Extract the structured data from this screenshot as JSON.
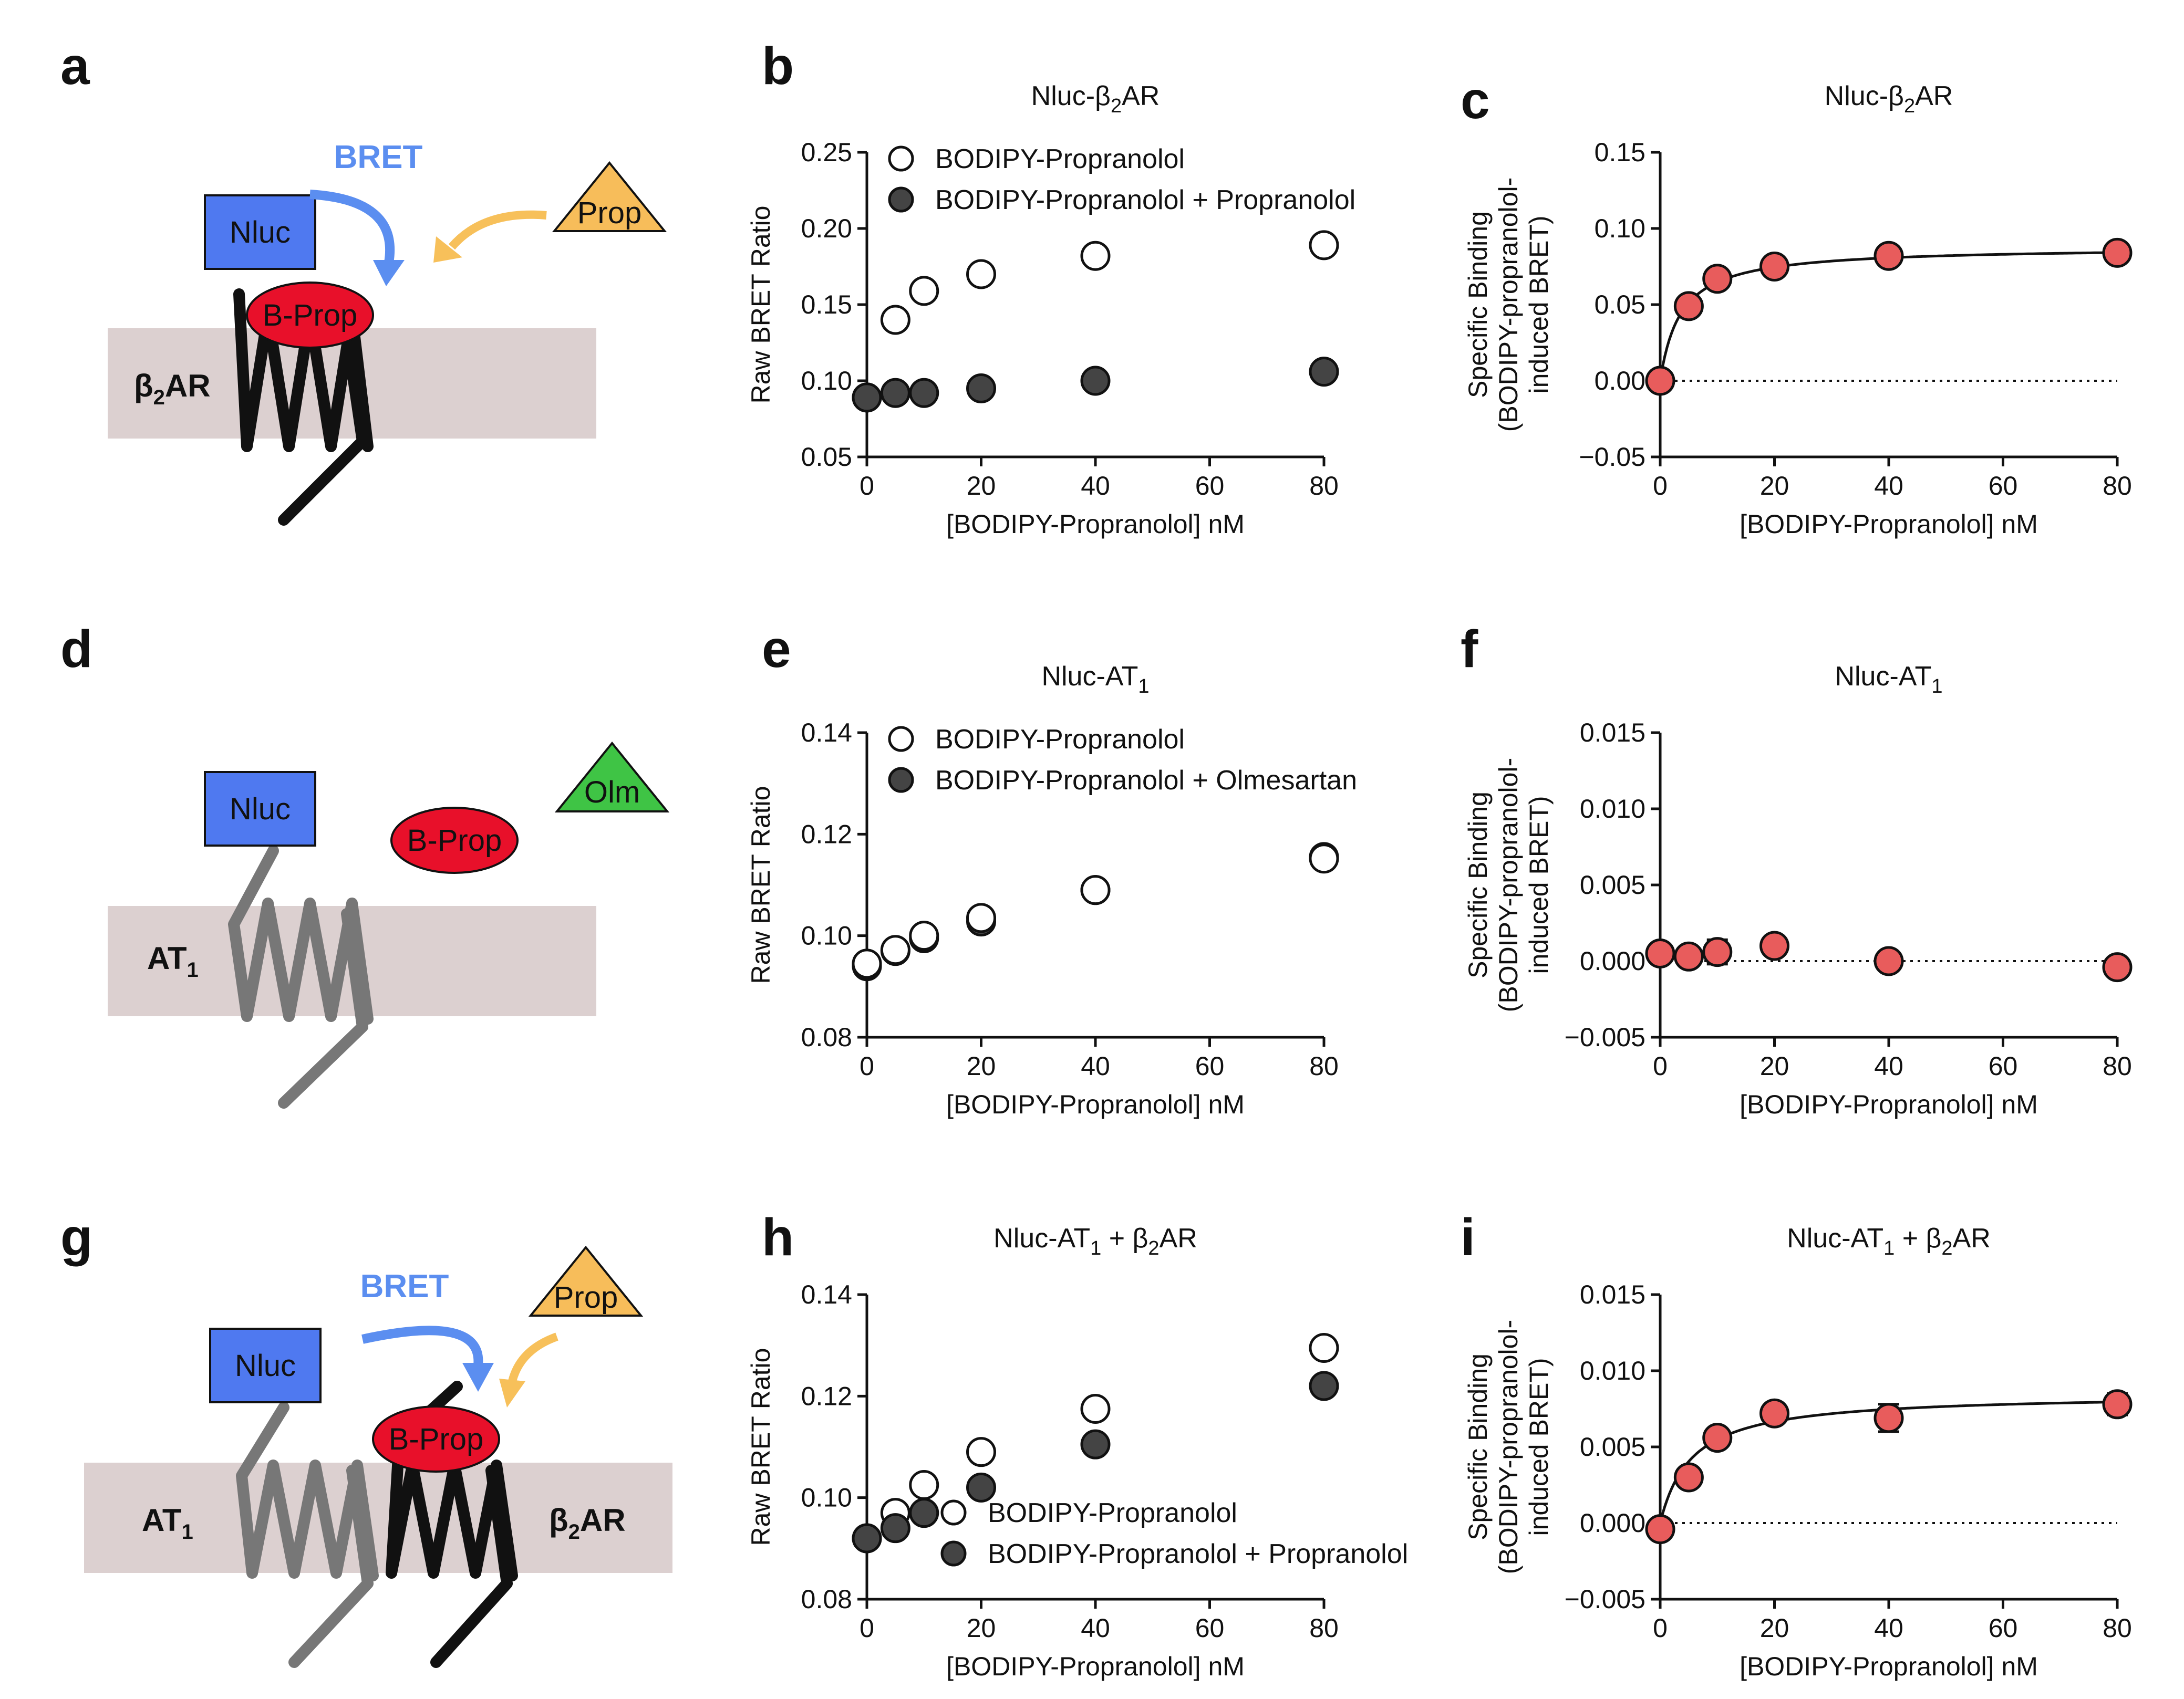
{
  "panel_labels": [
    "a",
    "b",
    "c",
    "d",
    "e",
    "f",
    "g",
    "h",
    "i"
  ],
  "diagram_a": {
    "nluc": "Nluc",
    "ligand": "B-Prop",
    "competitor": "Prop",
    "bret": "BRET",
    "receptor": "β",
    "receptor_sub": "2",
    "receptor_tail": "AR"
  },
  "diagram_d": {
    "nluc": "Nluc",
    "ligand": "B-Prop",
    "competitor": "Olm",
    "receptor": "AT",
    "receptor_sub": "1"
  },
  "diagram_g": {
    "nluc": "Nluc",
    "ligand": "B-Prop",
    "competitor": "Prop",
    "bret": "BRET",
    "receptor1": "AT",
    "receptor1_sub": "1",
    "receptor2": "β",
    "receptor2_sub": "2",
    "receptor2_tail": "AR"
  },
  "colors": {
    "membrane": "#dcd0d0",
    "nluc": "#4f79f0",
    "ligand": "#e8102a",
    "prop": "#f7bd5a",
    "olm": "#3fc445",
    "bret_arrow": "#5b8ef0",
    "prop_arrow": "#f7c05a",
    "red_point": "#e85c5c",
    "filled_point": "#444444"
  },
  "chart_data": [
    {
      "panel": "b",
      "type": "scatter",
      "title_parts": [
        "Nluc-β",
        "2",
        "AR"
      ],
      "xlabel": "[BODIPY-Propranolol] nM",
      "ylabel": "Raw BRET Ratio",
      "xlim": [
        0,
        80
      ],
      "ylim": [
        0.05,
        0.25
      ],
      "xticks": [
        0,
        20,
        40,
        60,
        80
      ],
      "xtick_labels": [
        "0",
        "20",
        "40",
        "60",
        "80"
      ],
      "yticks": [
        0.05,
        0.1,
        0.15,
        0.2,
        0.25
      ],
      "ytick_labels": [
        "0.05",
        "0.10",
        "0.15",
        "0.20",
        "0.25"
      ],
      "legend": "top-left",
      "series": [
        {
          "name": "BODIPY-Propranolol",
          "style": "open",
          "x": [
            0,
            5,
            10,
            20,
            40,
            80
          ],
          "y": [
            0.089,
            0.14,
            0.159,
            0.17,
            0.182,
            0.189
          ],
          "err": [
            0,
            0,
            0,
            0,
            0,
            0
          ]
        },
        {
          "name": "BODIPY-Propranolol + Propranolol",
          "style": "filled",
          "x": [
            0,
            5,
            10,
            20,
            40,
            80
          ],
          "y": [
            0.089,
            0.092,
            0.092,
            0.095,
            0.1,
            0.106
          ],
          "err": [
            0,
            0,
            0,
            0,
            0,
            0
          ]
        }
      ]
    },
    {
      "panel": "c",
      "type": "scatter",
      "title_parts": [
        "Nluc-β",
        "2",
        "AR"
      ],
      "xlabel": "[BODIPY-Propranolol] nM",
      "ylabel_lines": [
        "Specific Binding",
        "(BODIPY-propranolol-",
        "induced BRET)"
      ],
      "xlim": [
        0,
        80
      ],
      "ylim": [
        -0.05,
        0.15
      ],
      "xticks": [
        0,
        20,
        40,
        60,
        80
      ],
      "xtick_labels": [
        "0",
        "20",
        "40",
        "60",
        "80"
      ],
      "yticks": [
        -0.05,
        0.0,
        0.05,
        0.1,
        0.15
      ],
      "ytick_labels": [
        "−0.05",
        "0.00",
        "0.05",
        "0.10",
        "0.15"
      ],
      "zero_line": true,
      "fit": {
        "model": "one-site",
        "bmax": 0.088,
        "kd": 3.6
      },
      "series": [
        {
          "name": "Specific",
          "style": "red",
          "x": [
            0,
            5,
            10,
            20,
            40,
            80
          ],
          "y": [
            0.0,
            0.049,
            0.067,
            0.075,
            0.082,
            0.084
          ],
          "err": [
            0,
            0,
            0,
            0,
            0,
            0
          ]
        }
      ]
    },
    {
      "panel": "e",
      "type": "scatter",
      "title_parts": [
        "Nluc-AT",
        "1",
        ""
      ],
      "xlabel": "[BODIPY-Propranolol] nM",
      "ylabel": "Raw BRET Ratio",
      "xlim": [
        0,
        80
      ],
      "ylim": [
        0.08,
        0.14
      ],
      "xticks": [
        0,
        20,
        40,
        60,
        80
      ],
      "xtick_labels": [
        "0",
        "20",
        "40",
        "60",
        "80"
      ],
      "yticks": [
        0.08,
        0.1,
        0.12,
        0.14
      ],
      "ytick_labels": [
        "0.08",
        "0.10",
        "0.12",
        "0.14"
      ],
      "legend": "top-left",
      "series": [
        {
          "name": "BODIPY-Propranolol + Olmesartan",
          "style": "filled",
          "x": [
            0,
            5,
            10,
            20,
            40,
            80
          ],
          "y": [
            0.094,
            0.097,
            0.0995,
            0.1028,
            0.109,
            0.1155
          ],
          "err": [
            0.001,
            0,
            0,
            0,
            0,
            0
          ]
        },
        {
          "name": "BODIPY-Propranolol",
          "style": "open",
          "x": [
            0,
            5,
            10,
            20,
            40,
            80
          ],
          "y": [
            0.0945,
            0.0972,
            0.1,
            0.1035,
            0.109,
            0.1152
          ],
          "err": [
            0.001,
            0,
            0,
            0,
            0,
            0
          ]
        }
      ]
    },
    {
      "panel": "f",
      "type": "scatter",
      "title_parts": [
        "Nluc-AT",
        "1",
        ""
      ],
      "xlabel": "[BODIPY-Propranolol] nM",
      "ylabel_lines": [
        "Specific Binding",
        "(BODIPY-propranolol-",
        "induced BRET)"
      ],
      "xlim": [
        0,
        80
      ],
      "ylim": [
        -0.005,
        0.015
      ],
      "xticks": [
        0,
        20,
        40,
        60,
        80
      ],
      "xtick_labels": [
        "0",
        "20",
        "40",
        "60",
        "80"
      ],
      "yticks": [
        -0.005,
        0.0,
        0.005,
        0.01,
        0.015
      ],
      "ytick_labels": [
        "−0.005",
        "0.000",
        "0.005",
        "0.010",
        "0.015"
      ],
      "zero_line": true,
      "series": [
        {
          "name": "Specific",
          "style": "red",
          "x": [
            0,
            5,
            10,
            20,
            40,
            80
          ],
          "y": [
            0.0005,
            0.0003,
            0.0006,
            0.001,
            0.0,
            -0.0004
          ],
          "err": [
            0,
            0,
            0.0008,
            0.0005,
            0.0006,
            0
          ]
        }
      ]
    },
    {
      "panel": "h",
      "type": "scatter",
      "title_parts": [
        "Nluc-AT",
        "1",
        " + β",
        "2",
        "AR"
      ],
      "xlabel": "[BODIPY-Propranolol] nM",
      "ylabel": "Raw BRET Ratio",
      "xlim": [
        0,
        80
      ],
      "ylim": [
        0.08,
        0.14
      ],
      "xticks": [
        0,
        20,
        40,
        60,
        80
      ],
      "xtick_labels": [
        "0",
        "20",
        "40",
        "60",
        "80"
      ],
      "yticks": [
        0.08,
        0.1,
        0.12,
        0.14
      ],
      "ytick_labels": [
        "0.08",
        "0.10",
        "0.12",
        "0.14"
      ],
      "legend": "bottom-right",
      "series": [
        {
          "name": "BODIPY-Propranolol",
          "style": "open",
          "x": [
            0,
            5,
            10,
            20,
            40,
            80
          ],
          "y": [
            0.092,
            0.097,
            0.1025,
            0.109,
            0.1175,
            0.1295
          ],
          "err": [
            0,
            0,
            0,
            0.001,
            0.001,
            0.0012
          ]
        },
        {
          "name": "BODIPY-Propranolol + Propranolol",
          "style": "filled",
          "x": [
            0,
            5,
            10,
            20,
            40,
            80
          ],
          "y": [
            0.092,
            0.094,
            0.097,
            0.102,
            0.1105,
            0.122
          ],
          "err": [
            0,
            0,
            0,
            0,
            0,
            0.0012
          ]
        }
      ]
    },
    {
      "panel": "i",
      "type": "scatter",
      "title_parts": [
        "Nluc-AT",
        "1",
        " + β",
        "2",
        "AR"
      ],
      "xlabel": "[BODIPY-Propranolol] nM",
      "ylabel_lines": [
        "Specific Binding",
        "(BODIPY-propranolol-",
        "induced BRET)"
      ],
      "xlim": [
        0,
        80
      ],
      "ylim": [
        -0.005,
        0.015
      ],
      "xticks": [
        0,
        20,
        40,
        60,
        80
      ],
      "xtick_labels": [
        "0",
        "20",
        "40",
        "60",
        "80"
      ],
      "yticks": [
        -0.005,
        0.0,
        0.005,
        0.01,
        0.015
      ],
      "ytick_labels": [
        "−0.005",
        "0.000",
        "0.005",
        "0.010",
        "0.015"
      ],
      "zero_line": true,
      "fit": {
        "model": "one-site",
        "bmax": 0.0085,
        "kd": 5.5
      },
      "series": [
        {
          "name": "Specific",
          "style": "red",
          "x": [
            0,
            5,
            10,
            20,
            40,
            80
          ],
          "y": [
            -0.0004,
            0.003,
            0.0056,
            0.0072,
            0.0069,
            0.0078
          ],
          "err": [
            0,
            0.0006,
            0.0003,
            0.0006,
            0.0009,
            0.0007
          ]
        }
      ]
    }
  ]
}
